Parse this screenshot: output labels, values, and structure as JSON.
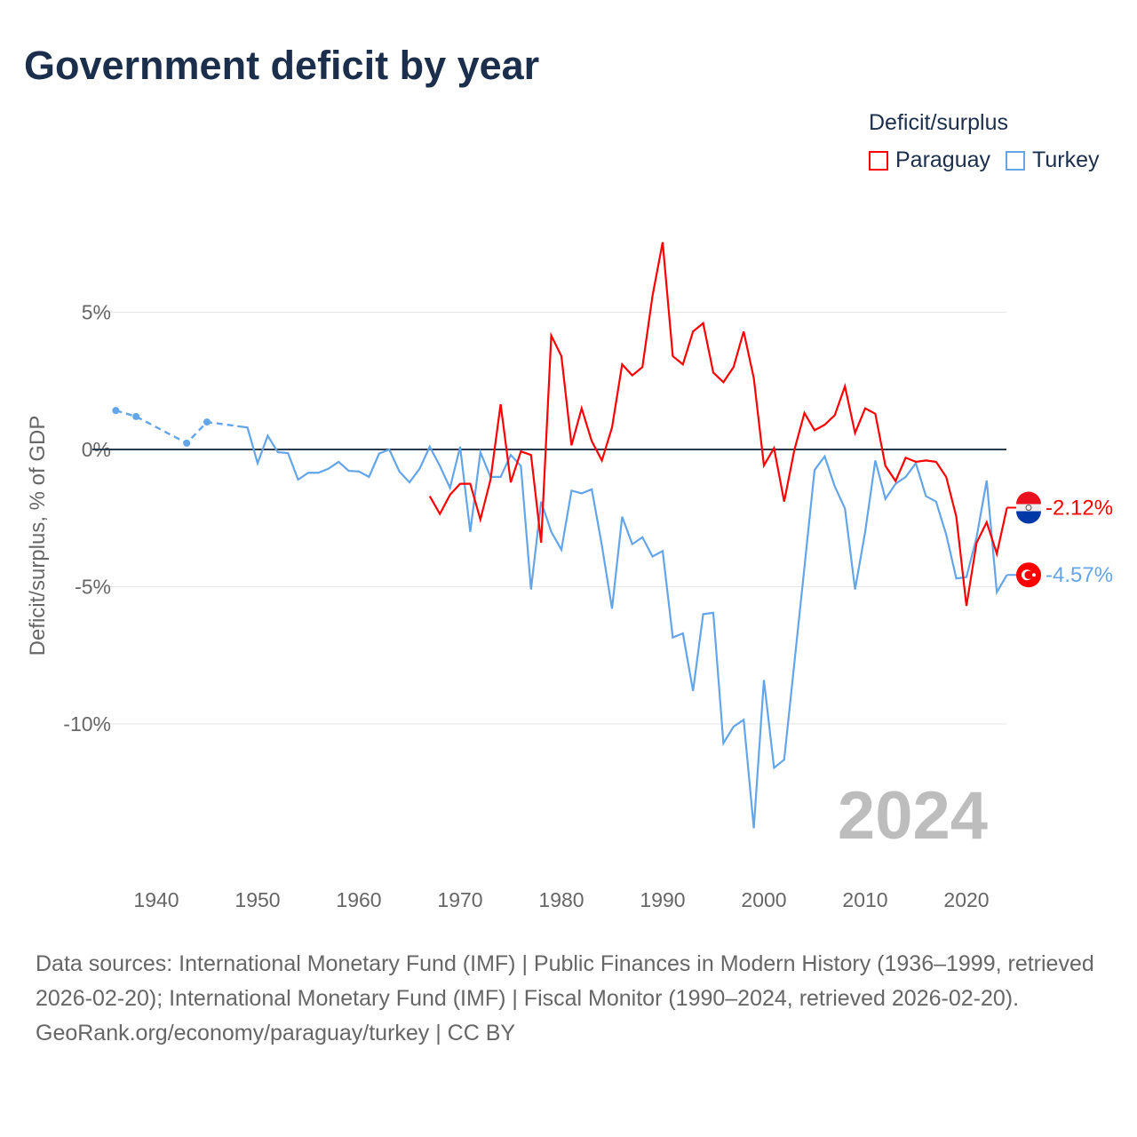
{
  "title": "Government deficit by year",
  "legend": {
    "title": "Deficit/surplus",
    "items": [
      "Paraguay",
      "Turkey"
    ]
  },
  "colors": {
    "Paraguay": "#ff0000",
    "Turkey": "#63a5e9",
    "zero": "#2b3a4d",
    "watermark": "#bdbdbd"
  },
  "chart_data": {
    "type": "line",
    "title": "Government deficit by year",
    "xlabel": "",
    "ylabel": "Deficit/surplus, % of GDP",
    "xlim": [
      1934,
      2024
    ],
    "ylim": [
      -15.5,
      8.5
    ],
    "x_ticks": [
      1940,
      1950,
      1960,
      1970,
      1980,
      1990,
      2000,
      2010,
      2020
    ],
    "y_ticks": [
      {
        "v": 5,
        "label": "5%"
      },
      {
        "v": 0,
        "label": "0%"
      },
      {
        "v": -5,
        "label": "-5%"
      },
      {
        "v": -10,
        "label": "-10%"
      }
    ],
    "year_watermark": "2024",
    "series": [
      {
        "name": "Turkey",
        "end_label": "-4.57%",
        "dashed_until": 1948,
        "x": [
          1936,
          1938,
          1943,
          1945,
          1948,
          1949,
          1950,
          1951,
          1952,
          1953,
          1954,
          1955,
          1956,
          1957,
          1958,
          1959,
          1960,
          1961,
          1962,
          1963,
          1964,
          1965,
          1966,
          1967,
          1968,
          1969,
          1970,
          1971,
          1972,
          1973,
          1974,
          1975,
          1976,
          1977,
          1978,
          1979,
          1980,
          1981,
          1982,
          1983,
          1984,
          1985,
          1986,
          1987,
          1988,
          1989,
          1990,
          1991,
          1992,
          1993,
          1994,
          1995,
          1996,
          1997,
          1998,
          1999,
          2000,
          2001,
          2002,
          2003,
          2004,
          2005,
          2006,
          2007,
          2008,
          2009,
          2010,
          2011,
          2012,
          2013,
          2014,
          2015,
          2016,
          2017,
          2018,
          2019,
          2020,
          2021,
          2022,
          2023,
          2024
        ],
        "y": [
          1.42,
          1.2,
          0.23,
          1.0,
          0.85,
          0.8,
          -0.5,
          0.5,
          -0.1,
          -0.13,
          -1.1,
          -0.85,
          -0.85,
          -0.7,
          -0.45,
          -0.78,
          -0.8,
          -1.0,
          -0.15,
          0,
          -0.8,
          -1.2,
          -0.7,
          0.1,
          -0.6,
          -1.4,
          0.1,
          -3.0,
          -0.1,
          -1.0,
          -1.0,
          -0.2,
          -0.6,
          -5.1,
          -1.9,
          -3.0,
          -3.65,
          -1.5,
          -1.6,
          -1.45,
          -3.5,
          -5.8,
          -2.45,
          -3.45,
          -3.2,
          -3.9,
          -3.7,
          -6.85,
          -6.7,
          -8.8,
          -6.0,
          -5.95,
          -10.7,
          -10.1,
          -9.85,
          -13.8,
          -8.4,
          -11.6,
          -11.3,
          -7.8,
          -4.3,
          -0.75,
          -0.25,
          -1.35,
          -2.15,
          -5.1,
          -3.0,
          -0.4,
          -1.8,
          -1.25,
          -1.0,
          -0.5,
          -1.7,
          -1.9,
          -3.1,
          -4.7,
          -4.65,
          -3.2,
          -1.13,
          -5.2,
          -4.57
        ]
      },
      {
        "name": "Paraguay",
        "end_label": "-2.12%",
        "x": [
          1967,
          1968,
          1969,
          1970,
          1971,
          1972,
          1973,
          1974,
          1975,
          1976,
          1977,
          1978,
          1979,
          1980,
          1981,
          1982,
          1983,
          1984,
          1985,
          1986,
          1987,
          1988,
          1989,
          1990,
          1991,
          1992,
          1993,
          1994,
          1995,
          1996,
          1997,
          1998,
          1999,
          2000,
          2001,
          2002,
          2003,
          2004,
          2005,
          2006,
          2007,
          2008,
          2009,
          2010,
          2011,
          2012,
          2013,
          2014,
          2015,
          2016,
          2017,
          2018,
          2019,
          2020,
          2021,
          2022,
          2023,
          2024
        ],
        "y": [
          -1.7,
          -2.35,
          -1.65,
          -1.25,
          -1.25,
          -2.55,
          -1.1,
          1.65,
          -1.2,
          -0.07,
          -0.2,
          -3.4,
          4.15,
          3.4,
          0.15,
          1.5,
          0.3,
          -0.4,
          0.8,
          3.1,
          2.7,
          3.0,
          5.6,
          7.55,
          3.4,
          3.1,
          4.3,
          4.6,
          2.8,
          2.45,
          3.0,
          4.3,
          2.6,
          -0.58,
          0.05,
          -1.9,
          -0.03,
          1.33,
          0.7,
          0.9,
          1.25,
          2.3,
          0.6,
          1.5,
          1.3,
          -0.6,
          -1.15,
          -0.3,
          -0.45,
          -0.4,
          -0.45,
          -1.0,
          -2.45,
          -5.7,
          -3.4,
          -2.65,
          -3.8,
          -2.12
        ]
      }
    ]
  },
  "sources": {
    "text": "Data sources: International Monetary Fund (IMF) | Public Finances in Modern History (1936–1999, retrieved 2026-02-20); International Monetary Fund (IMF) | Fiscal Monitor (1990–2024, retrieved 2026-02-20).",
    "link": "GeoRank.org/economy/paraguay/turkey | CC BY"
  }
}
